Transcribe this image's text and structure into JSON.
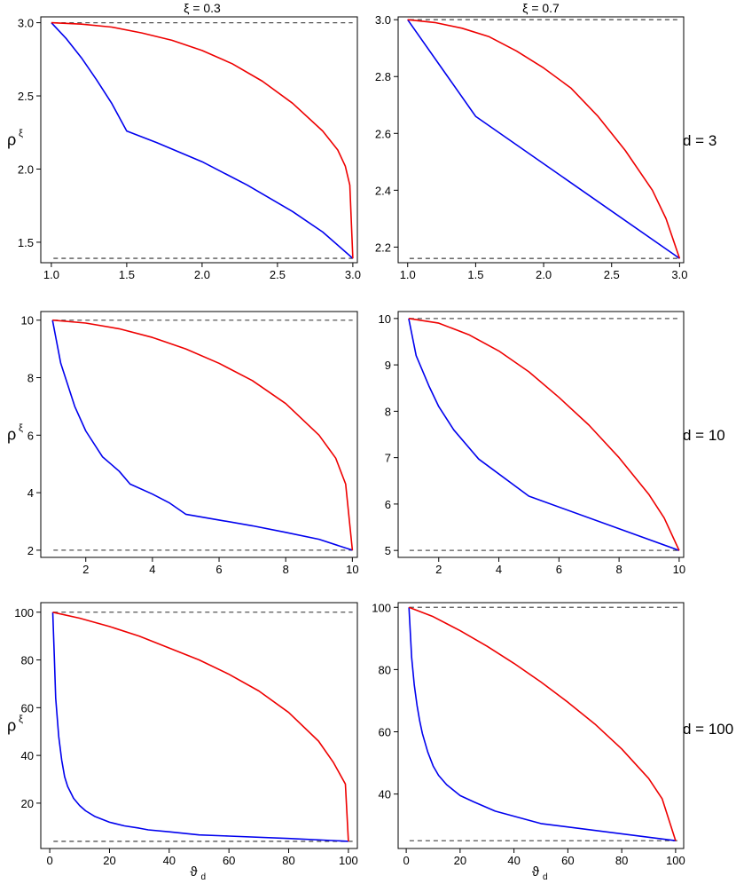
{
  "chart_data": {
    "type": "line",
    "columns": [
      {
        "title": "ξ = 0.3"
      },
      {
        "title": "ξ = 0.7"
      }
    ],
    "rows": [
      {
        "label": "d = 3"
      },
      {
        "label": "d = 10"
      },
      {
        "label": "d = 100"
      }
    ],
    "ylabel": "ρ",
    "ylabel_sup": "ξ",
    "xlabel": "ϑ",
    "xlabel_sub": "d",
    "colors": {
      "red": "#ee0000",
      "blue": "#0000ee",
      "dashed": "#555555",
      "frame": "#000000"
    },
    "panels": [
      {
        "row": 0,
        "col": 0,
        "xlim": [
          0.93,
          3.03
        ],
        "ylim": [
          1.36,
          3.04
        ],
        "xticks": [
          1.0,
          1.5,
          2.0,
          2.5,
          3.0
        ],
        "xtick_labels": [
          "1.0",
          "1.5",
          "2.0",
          "2.5",
          "3.0"
        ],
        "yticks": [
          1.5,
          2.0,
          2.5,
          3.0
        ],
        "ytick_labels": [
          "1.5",
          "2.0",
          "2.5",
          "3.0"
        ],
        "hlines": [
          3.0,
          1.39
        ],
        "red": {
          "x": [
            1.0,
            1.2,
            1.4,
            1.6,
            1.8,
            2.0,
            2.2,
            2.4,
            2.6,
            2.8,
            2.9,
            2.95,
            2.98,
            3.0
          ],
          "y": [
            3.0,
            2.99,
            2.97,
            2.93,
            2.88,
            2.81,
            2.72,
            2.6,
            2.45,
            2.26,
            2.13,
            2.02,
            1.89,
            1.39
          ]
        },
        "blue": {
          "x": [
            1.0,
            1.1,
            1.2,
            1.3,
            1.4,
            1.5,
            1.7,
            2.0,
            2.3,
            2.6,
            2.8,
            3.0
          ],
          "y": [
            3.0,
            2.89,
            2.76,
            2.61,
            2.45,
            2.26,
            2.18,
            2.05,
            1.89,
            1.71,
            1.57,
            1.39
          ]
        }
      },
      {
        "row": 0,
        "col": 1,
        "xlim": [
          0.93,
          3.03
        ],
        "ylim": [
          2.145,
          3.01
        ],
        "xticks": [
          1.0,
          1.5,
          2.0,
          2.5,
          3.0
        ],
        "xtick_labels": [
          "1.0",
          "1.5",
          "2.0",
          "2.5",
          "3.0"
        ],
        "yticks": [
          2.2,
          2.4,
          2.6,
          2.8,
          3.0
        ],
        "ytick_labels": [
          "2.2",
          "2.4",
          "2.6",
          "2.8",
          "3.0"
        ],
        "hlines": [
          3.0,
          2.16
        ],
        "red": {
          "x": [
            1.0,
            1.2,
            1.4,
            1.6,
            1.8,
            2.0,
            2.2,
            2.4,
            2.6,
            2.8,
            2.9,
            3.0
          ],
          "y": [
            3.0,
            2.99,
            2.97,
            2.94,
            2.89,
            2.83,
            2.76,
            2.66,
            2.54,
            2.4,
            2.3,
            2.16
          ]
        },
        "blue": {
          "x": [
            1.0,
            1.5,
            3.0
          ],
          "y": [
            3.0,
            2.66,
            2.16
          ]
        }
      },
      {
        "row": 1,
        "col": 0,
        "xlim": [
          0.65,
          10.15
        ],
        "ylim": [
          1.75,
          10.3
        ],
        "xticks": [
          2,
          4,
          6,
          8,
          10
        ],
        "xtick_labels": [
          "2",
          "4",
          "6",
          "8",
          "10"
        ],
        "yticks": [
          2,
          4,
          6,
          8,
          10
        ],
        "ytick_labels": [
          "2",
          "4",
          "6",
          "8",
          "10"
        ],
        "hlines": [
          10,
          2.0
        ],
        "red": {
          "x": [
            1,
            2,
            3,
            4,
            5,
            6,
            7,
            8,
            9,
            9.5,
            9.8,
            10
          ],
          "y": [
            10,
            9.9,
            9.7,
            9.4,
            9.0,
            8.5,
            7.9,
            7.1,
            6.0,
            5.2,
            4.3,
            2.0
          ]
        },
        "blue": {
          "x": [
            1,
            1.25,
            1.67,
            2.0,
            2.5,
            3.0,
            3.33,
            4.0,
            4.5,
            5.0,
            6.0,
            7.0,
            8.0,
            9.0,
            10.0
          ],
          "y": [
            10,
            8.5,
            7.0,
            6.15,
            5.25,
            4.75,
            4.3,
            3.95,
            3.65,
            3.25,
            3.05,
            2.85,
            2.62,
            2.38,
            2.0
          ]
        }
      },
      {
        "row": 1,
        "col": 1,
        "xlim": [
          0.65,
          10.15
        ],
        "ylim": [
          4.85,
          10.15
        ],
        "xticks": [
          2,
          4,
          6,
          8,
          10
        ],
        "xtick_labels": [
          "2",
          "4",
          "6",
          "8",
          "10"
        ],
        "yticks": [
          5,
          6,
          7,
          8,
          9,
          10
        ],
        "ytick_labels": [
          "5",
          "6",
          "7",
          "8",
          "9",
          "10"
        ],
        "hlines": [
          10,
          5.0
        ],
        "red": {
          "x": [
            1,
            2,
            3,
            4,
            5,
            6,
            7,
            8,
            9,
            9.5,
            10
          ],
          "y": [
            10,
            9.9,
            9.65,
            9.3,
            8.85,
            8.3,
            7.7,
            7.0,
            6.2,
            5.7,
            5.0
          ]
        },
        "blue": {
          "x": [
            1,
            1.25,
            1.67,
            2.0,
            2.5,
            3.33,
            5.0,
            10.0
          ],
          "y": [
            10,
            9.2,
            8.55,
            8.1,
            7.6,
            6.97,
            6.17,
            5.0
          ]
        }
      },
      {
        "row": 2,
        "col": 0,
        "xlim": [
          -3,
          103
        ],
        "ylim": [
          1,
          104
        ],
        "xticks": [
          0,
          20,
          40,
          60,
          80,
          100
        ],
        "xtick_labels": [
          "0",
          "20",
          "40",
          "60",
          "80",
          "100"
        ],
        "yticks": [
          20,
          40,
          60,
          80,
          100
        ],
        "ytick_labels": [
          "20",
          "40",
          "60",
          "80",
          "100"
        ],
        "hlines": [
          100,
          4.0
        ],
        "red": {
          "x": [
            1,
            10,
            20,
            30,
            40,
            50,
            60,
            70,
            80,
            90,
            95,
            99,
            100
          ],
          "y": [
            100,
            97.5,
            94,
            90,
            85,
            80,
            74,
            67,
            58,
            46,
            37,
            28,
            4
          ]
        },
        "blue": {
          "x": [
            1,
            1.5,
            2,
            3,
            4,
            5,
            6,
            8,
            10,
            12,
            15,
            20,
            25,
            30,
            33,
            40,
            50,
            60,
            80,
            100
          ],
          "y": [
            100,
            82,
            64,
            48,
            38,
            31,
            27,
            22,
            19,
            16.8,
            14.5,
            12,
            10.5,
            9.5,
            8.8,
            8,
            6.7,
            6.2,
            5.2,
            4
          ]
        }
      },
      {
        "row": 2,
        "col": 1,
        "xlim": [
          -3,
          103
        ],
        "ylim": [
          22.5,
          101.5
        ],
        "xticks": [
          0,
          20,
          40,
          60,
          80,
          100
        ],
        "xtick_labels": [
          "0",
          "20",
          "40",
          "60",
          "80",
          "100"
        ],
        "yticks": [
          40,
          60,
          80,
          100
        ],
        "ytick_labels": [
          "40",
          "60",
          "80",
          "100"
        ],
        "hlines": [
          100,
          25.0
        ],
        "red": {
          "x": [
            1,
            10,
            20,
            30,
            40,
            50,
            60,
            70,
            80,
            90,
            95,
            100
          ],
          "y": [
            100,
            97,
            92.5,
            87.5,
            82,
            76,
            69.5,
            62.5,
            54.5,
            45,
            38.5,
            25
          ]
        },
        "blue": {
          "x": [
            1,
            2,
            3,
            4,
            5,
            6,
            8,
            10,
            12,
            15,
            20,
            25,
            33,
            50,
            100
          ],
          "y": [
            100,
            84,
            75,
            68.5,
            63.5,
            59.5,
            53.5,
            49,
            46,
            43,
            39.5,
            37.5,
            34.5,
            30.5,
            25
          ]
        }
      }
    ]
  }
}
